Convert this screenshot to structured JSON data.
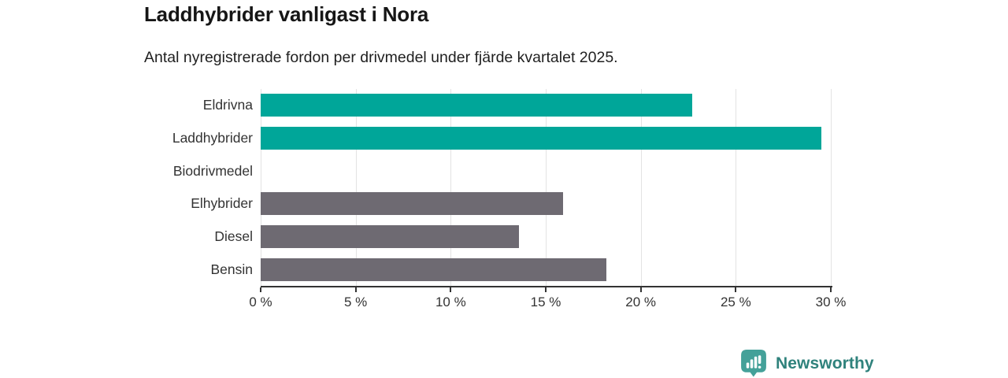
{
  "header": {
    "title": "Laddhybrider vanligast i Nora",
    "subtitle": "Antal nyregistrerade fordon per drivmedel under fjärde kvartalet 2025."
  },
  "chart_data": {
    "type": "bar",
    "orientation": "horizontal",
    "title": "Laddhybrider vanligast i Nora",
    "subtitle": "Antal nyregistrerade fordon per drivmedel under fjärde kvartalet 2025.",
    "categories": [
      "Eldrivna",
      "Laddhybrider",
      "Biodrivmedel",
      "Elhybrider",
      "Diesel",
      "Bensin"
    ],
    "values": [
      22.7,
      29.5,
      0,
      15.9,
      13.6,
      18.2
    ],
    "unit": "%",
    "bar_colors": [
      "#00a699",
      "#00a699",
      "#00a699",
      "#6e6a72",
      "#6e6a72",
      "#6e6a72"
    ],
    "xlim": [
      0,
      30
    ],
    "ticks": [
      {
        "value": 0,
        "label": "0 %"
      },
      {
        "value": 5,
        "label": "5 %"
      },
      {
        "value": 10,
        "label": "10 %"
      },
      {
        "value": 15,
        "label": "15 %"
      },
      {
        "value": 20,
        "label": "20 %"
      },
      {
        "value": 25,
        "label": "25 %"
      },
      {
        "value": 30,
        "label": "30 %"
      }
    ],
    "grid": "vertical",
    "legend": "none"
  },
  "footer": {
    "brand": "Newsworthy",
    "logo_icon": "newsworthy-speech-bubble-bar-chart-icon"
  },
  "colors": {
    "accent_teal": "#00a699",
    "neutral_gray": "#6e6a72",
    "axis": "#333333",
    "grid": "#e3e3e3",
    "brand_teal": "#2f827c",
    "logo_bubble": "#44a199"
  }
}
